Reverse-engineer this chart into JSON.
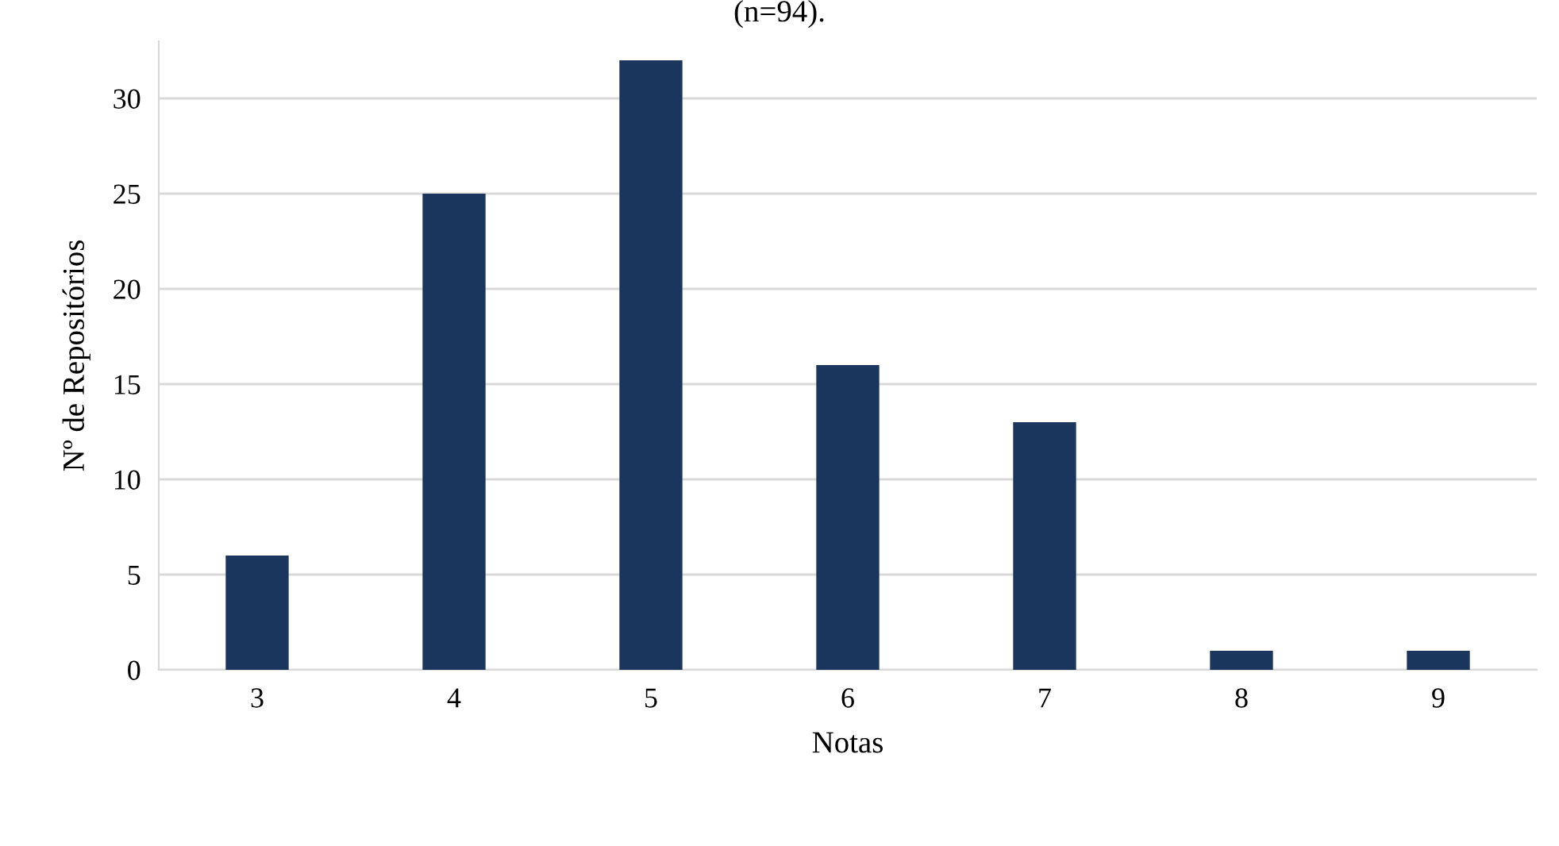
{
  "chart_data": {
    "type": "bar",
    "title": "(n=94).",
    "xlabel": "Notas",
    "ylabel": "Nº de Repositórios",
    "categories": [
      "3",
      "4",
      "5",
      "6",
      "7",
      "8",
      "9"
    ],
    "values": [
      6,
      25,
      32,
      16,
      13,
      1,
      1
    ],
    "color": "#1b365d",
    "ylim": [
      0,
      33
    ],
    "yticks": [
      0,
      5,
      10,
      15,
      20,
      25,
      30
    ],
    "grid": "y",
    "legend": false
  }
}
